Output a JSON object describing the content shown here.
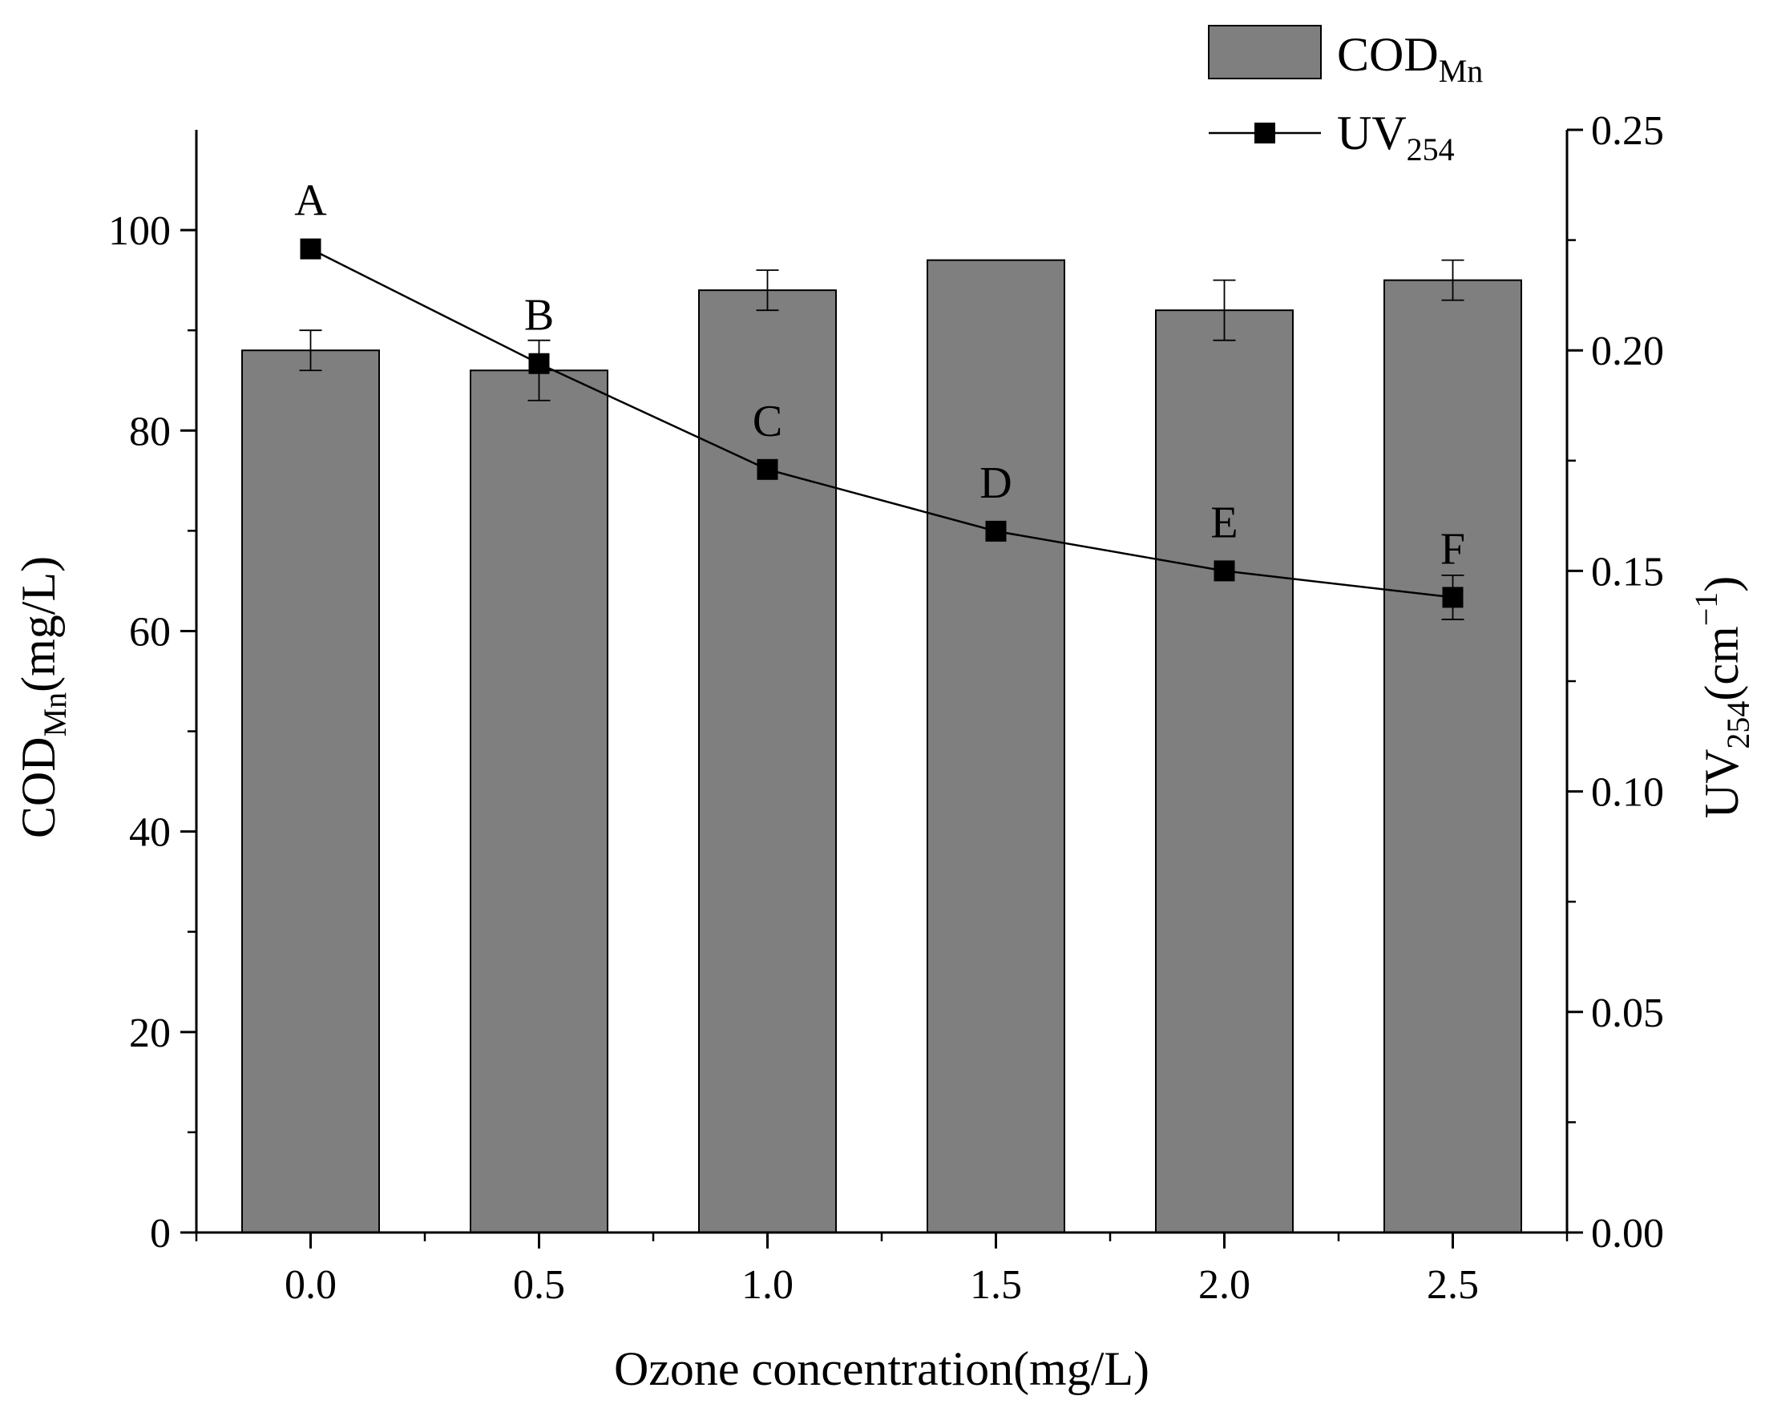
{
  "chart_data": {
    "type": "bar+line",
    "categories": [
      "0.0",
      "0.5",
      "1.0",
      "1.5",
      "2.0",
      "2.5"
    ],
    "xlabel": "Ozone concentration(mg/L)",
    "y_left": {
      "label_main": "COD",
      "label_sub": "Mn",
      "label_unit": "(mg/L)",
      "range": [
        0,
        110
      ],
      "ticks": [
        0,
        20,
        40,
        60,
        80,
        100
      ],
      "tick_labels": [
        "0",
        "20",
        "40",
        "60",
        "80",
        "100"
      ],
      "minor_ticks": [
        10,
        30,
        50,
        70,
        90
      ]
    },
    "y_right": {
      "label_main": "UV",
      "label_sub": "254",
      "label_unit_open": "(cm",
      "label_sup": "−1",
      "label_unit_close": ")",
      "range": [
        0,
        0.25
      ],
      "ticks": [
        0,
        0.05,
        0.1,
        0.15,
        0.2,
        0.25
      ],
      "tick_labels": [
        "0.00",
        "0.05",
        "0.10",
        "0.15",
        "0.20",
        "0.25"
      ],
      "minor_ticks": [
        0.025,
        0.075,
        0.125,
        0.175,
        0.225
      ]
    },
    "series": [
      {
        "name": "COD",
        "name_sub": "Mn",
        "type": "bar",
        "axis": "left",
        "values": [
          88,
          86,
          94,
          97,
          92,
          95
        ],
        "errors": [
          2,
          3,
          2,
          0,
          3,
          2
        ],
        "color": "#7f7f7f"
      },
      {
        "name": "UV",
        "name_sub": "254",
        "type": "line",
        "axis": "right",
        "values": [
          0.223,
          0.197,
          0.173,
          0.159,
          0.15,
          0.144
        ],
        "errors": [
          0,
          0,
          0,
          0,
          0,
          0.005
        ],
        "point_labels": [
          "A",
          "B",
          "C",
          "D",
          "E",
          "F"
        ],
        "color": "#000000"
      }
    ]
  }
}
